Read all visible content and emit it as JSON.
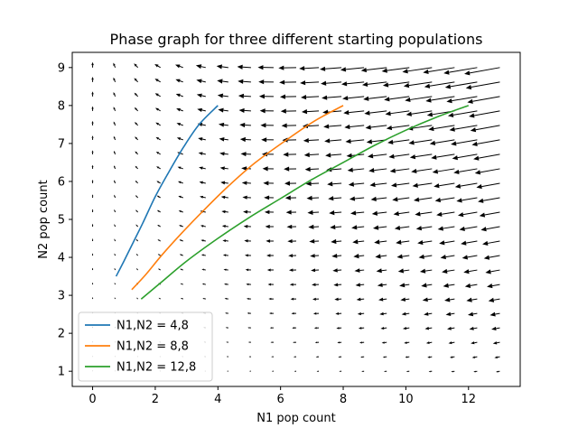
{
  "chart_data": {
    "type": "quiver+line",
    "title": "Phase graph for three different starting populations",
    "xlabel": "N1 pop count",
    "ylabel": "N2 pop count",
    "xlim": [
      -0.65,
      13.65
    ],
    "ylim": [
      0.6,
      9.4
    ],
    "xticks": [
      0,
      2,
      4,
      6,
      8,
      10,
      12
    ],
    "yticks": [
      1,
      2,
      3,
      4,
      5,
      6,
      7,
      8,
      9
    ],
    "grid": false,
    "legend_position": "lower-left",
    "vector_field": {
      "x_start": 0,
      "x_end": 13,
      "x_count": 19,
      "y_start": 1,
      "y_end": 9,
      "y_count": 22,
      "dN1": "-0.15*N1*N2",
      "dN2": "0.3*N2 - 0.05*N1*N2"
    },
    "series": [
      {
        "name": "N1,N2 = 4,8",
        "color": "#1f77b4",
        "points": [
          [
            4.0,
            8.0
          ],
          [
            3.4,
            7.5
          ],
          [
            2.9,
            6.9
          ],
          [
            2.4,
            6.2
          ],
          [
            2.0,
            5.6
          ],
          [
            1.6,
            4.9
          ],
          [
            1.3,
            4.4
          ],
          [
            1.0,
            3.9
          ],
          [
            0.75,
            3.5
          ]
        ]
      },
      {
        "name": "N1,N2 = 8,8",
        "color": "#ff7f0e",
        "points": [
          [
            8.0,
            8.0
          ],
          [
            7.1,
            7.6
          ],
          [
            6.2,
            7.1
          ],
          [
            5.2,
            6.5
          ],
          [
            4.3,
            5.85
          ],
          [
            3.5,
            5.2
          ],
          [
            2.8,
            4.6
          ],
          [
            2.2,
            4.05
          ],
          [
            1.7,
            3.55
          ],
          [
            1.25,
            3.15
          ]
        ]
      },
      {
        "name": "N1,N2 = 12,8",
        "color": "#2ca02c",
        "points": [
          [
            12.0,
            8.0
          ],
          [
            11.0,
            7.7
          ],
          [
            10.0,
            7.35
          ],
          [
            9.0,
            6.95
          ],
          [
            8.0,
            6.5
          ],
          [
            7.0,
            6.05
          ],
          [
            6.0,
            5.55
          ],
          [
            5.0,
            5.05
          ],
          [
            4.0,
            4.5
          ],
          [
            3.0,
            3.9
          ],
          [
            2.2,
            3.35
          ],
          [
            1.55,
            2.9
          ]
        ]
      }
    ]
  }
}
